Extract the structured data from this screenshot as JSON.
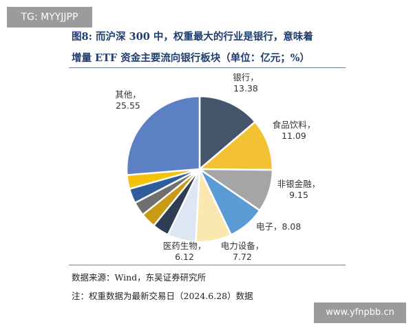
{
  "watermark_top_left": "TG: MYYJJPP",
  "watermark_bottom_right": "www.yfnpbb.cn",
  "title_line1": "图8: 而沪深 300 中，权重最大的行业是银行，意味着",
  "title_line2": "增量 ETF 资金主要流向银行板块（单位：亿元；%）",
  "source": "数据来源：Wind，东吴证券研究所",
  "note": "注：权重数据为最新交易日（2024.6.28）数据",
  "chart_data": {
    "type": "pie",
    "title": "",
    "start": "12 o'clock, clockwise",
    "slices": [
      {
        "name": "银行",
        "value": 13.38,
        "color": "#44546a"
      },
      {
        "name": "食品饮料",
        "value": 11.09,
        "color": "#f2c232"
      },
      {
        "name": "非银金融",
        "value": 9.15,
        "color": "#a5a5a5"
      },
      {
        "name": "电子",
        "value": 8.08,
        "color": "#5b9bd5"
      },
      {
        "name": "电力设备",
        "value": 7.72,
        "color": "#fbe7b0"
      },
      {
        "name": "医药生物",
        "value": 6.12,
        "color": "#dde6f3"
      },
      {
        "name": "",
        "value": 3.6,
        "color": "#2e3d54"
      },
      {
        "name": "",
        "value": 3.3,
        "color": "#c99a14"
      },
      {
        "name": "",
        "value": 3.0,
        "color": "#6f6f6f"
      },
      {
        "name": "",
        "value": 3.2,
        "color": "#2f5d9b"
      },
      {
        "name": "",
        "value": 3.0,
        "color": "#f5c20a"
      },
      {
        "name": "其他",
        "value": 25.55,
        "color": "#5b80c3"
      }
    ]
  }
}
